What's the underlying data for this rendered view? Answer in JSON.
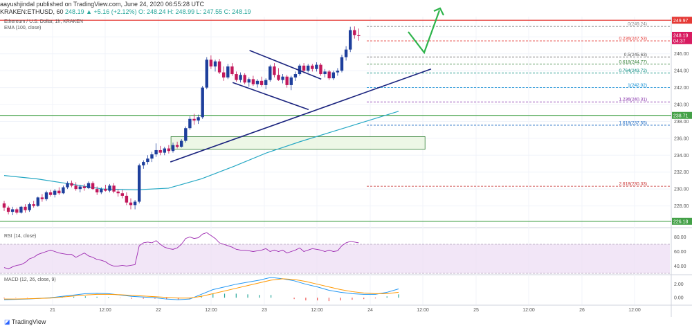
{
  "header": {
    "line1": "aayushjindal published on TradingView.com, June 24, 2020 06:55:28 UTC",
    "symbol": "KRAKEN:ETHUSD, 60",
    "ohlc": "248.19  ▲  +5.16 (+2.12%)  O: 248.24  H: 248.99  L: 247.55  C: 248.19"
  },
  "legend": {
    "pair": "Ethereum / U.S. Dollar, 1h, KRAKEN",
    "ema": "EMA (100, close)"
  },
  "rsi_label": "RSI (14, close)",
  "macd_label": "MACD (12, 26, close, 9)",
  "footer": {
    "brand": "TradingView"
  },
  "colors": {
    "up": "#1e3f9c",
    "down": "#c2185b",
    "ema": "#26a8c4",
    "trend": "#1a237e",
    "red_line": "#e53935",
    "green_line": "#43a047",
    "arrow": "#2db34a",
    "rsi": "#9c27b0",
    "macd": "#2196f3",
    "signal": "#ff9800"
  },
  "chart_data": {
    "type": "candlestick",
    "symbol": "ETHUSD",
    "timeframe": "1h",
    "x_ticks": [
      "21",
      "12:00",
      "22",
      "12:00",
      "23",
      "12:00",
      "24",
      "12:00",
      "25",
      "12:00",
      "26",
      "12:00"
    ],
    "y_ticks": [
      228.0,
      230.0,
      232.0,
      234.0,
      236.0,
      238.0,
      240.0,
      242.0,
      244.0,
      246.0,
      248.0
    ],
    "ylim": [
      226.0,
      250.4
    ],
    "price_labels": [
      {
        "value": 249.97,
        "text": "249.97",
        "color": "#e53935"
      },
      {
        "value": 248.19,
        "text": "248.19",
        "color": "#d81b60"
      },
      {
        "value": 247.55,
        "text": "04:37",
        "color": "#d81b60"
      },
      {
        "value": 238.71,
        "text": "238.71",
        "color": "#43a047"
      },
      {
        "value": 226.18,
        "text": "226.18",
        "color": "#43a047"
      }
    ],
    "fib_levels": [
      {
        "value": 249.24,
        "label": "0(249.24)",
        "color": "#888888"
      },
      {
        "value": 247.53,
        "label": "0.236(247.53)",
        "color": "#e53935"
      },
      {
        "value": 245.63,
        "label": "0.5(245.63)",
        "color": "#555555"
      },
      {
        "value": 244.77,
        "label": "0.618(244.77)",
        "color": "#2e7d32"
      },
      {
        "value": 243.72,
        "label": "0.764(243.72)",
        "color": "#00897b"
      },
      {
        "value": 242.02,
        "label": "1(242.02)",
        "color": "#0288d1"
      },
      {
        "value": 240.31,
        "label": "1.236(240.31)",
        "color": "#7b1fa2"
      },
      {
        "value": 237.55,
        "label": "1.618(237.55)",
        "color": "#1565c0"
      },
      {
        "value": 230.33,
        "label": "2.618(230.33)",
        "color": "#c62828"
      }
    ],
    "horizontal_lines": [
      249.97,
      238.71,
      226.18
    ],
    "candles": [
      [
        228.3,
        228.6,
        227.4,
        227.8
      ],
      [
        227.8,
        228.0,
        227.0,
        227.3
      ],
      [
        227.3,
        227.9,
        226.9,
        227.6
      ],
      [
        227.6,
        227.8,
        227.0,
        227.2
      ],
      [
        227.2,
        228.0,
        227.1,
        227.9
      ],
      [
        227.9,
        228.2,
        227.2,
        227.5
      ],
      [
        227.5,
        228.4,
        227.3,
        228.2
      ],
      [
        228.2,
        228.6,
        227.8,
        228.0
      ],
      [
        228.0,
        229.1,
        227.9,
        229.0
      ],
      [
        229.0,
        229.4,
        228.5,
        228.8
      ],
      [
        228.8,
        229.8,
        228.6,
        229.6
      ],
      [
        229.6,
        229.9,
        229.1,
        229.3
      ],
      [
        229.3,
        230.0,
        229.0,
        229.8
      ],
      [
        229.8,
        230.2,
        229.3,
        229.5
      ],
      [
        229.5,
        230.4,
        229.4,
        230.2
      ],
      [
        230.2,
        230.9,
        230.0,
        230.7
      ],
      [
        230.7,
        231.0,
        230.2,
        230.4
      ],
      [
        230.4,
        230.8,
        229.8,
        230.0
      ],
      [
        230.0,
        230.5,
        229.6,
        230.3
      ],
      [
        230.3,
        230.6,
        229.8,
        230.1
      ],
      [
        230.1,
        230.9,
        230.0,
        230.7
      ],
      [
        230.7,
        230.9,
        229.9,
        230.0
      ],
      [
        230.0,
        230.3,
        229.3,
        229.6
      ],
      [
        229.6,
        230.2,
        229.4,
        230.0
      ],
      [
        230.0,
        230.5,
        229.7,
        229.8
      ],
      [
        229.8,
        230.6,
        229.6,
        230.4
      ],
      [
        230.4,
        230.7,
        229.5,
        229.7
      ],
      [
        229.7,
        230.0,
        229.1,
        229.5
      ],
      [
        229.5,
        229.9,
        228.9,
        229.2
      ],
      [
        229.2,
        229.6,
        228.1,
        228.4
      ],
      [
        228.4,
        228.9,
        227.6,
        228.1
      ],
      [
        228.1,
        228.7,
        227.6,
        228.5
      ],
      [
        228.5,
        233.0,
        228.3,
        232.8
      ],
      [
        232.8,
        233.4,
        232.4,
        233.2
      ],
      [
        233.2,
        234.0,
        232.9,
        233.6
      ],
      [
        233.6,
        234.4,
        233.2,
        234.1
      ],
      [
        234.1,
        235.4,
        233.8,
        234.6
      ],
      [
        234.6,
        235.1,
        234.0,
        234.3
      ],
      [
        234.3,
        235.0,
        234.0,
        234.8
      ],
      [
        234.8,
        235.2,
        234.2,
        234.5
      ],
      [
        234.5,
        235.5,
        234.3,
        235.2
      ],
      [
        235.2,
        235.6,
        234.8,
        235.0
      ],
      [
        235.0,
        235.9,
        234.9,
        235.7
      ],
      [
        235.7,
        237.4,
        235.5,
        237.2
      ],
      [
        237.2,
        238.6,
        237.0,
        238.3
      ],
      [
        238.3,
        238.9,
        237.6,
        238.1
      ],
      [
        238.1,
        238.8,
        237.7,
        238.5
      ],
      [
        238.5,
        242.2,
        238.3,
        242.0
      ],
      [
        242.0,
        245.6,
        241.8,
        245.3
      ],
      [
        245.3,
        245.8,
        244.2,
        244.5
      ],
      [
        244.5,
        245.3,
        243.9,
        245.1
      ],
      [
        245.1,
        245.4,
        243.6,
        243.8
      ],
      [
        243.8,
        244.5,
        242.8,
        243.2
      ],
      [
        243.2,
        244.8,
        243.0,
        244.5
      ],
      [
        244.5,
        244.9,
        243.4,
        243.6
      ],
      [
        243.6,
        243.9,
        242.7,
        242.9
      ],
      [
        242.9,
        243.8,
        242.6,
        243.5
      ],
      [
        243.5,
        243.7,
        242.4,
        242.6
      ],
      [
        242.6,
        243.2,
        242.1,
        243.0
      ],
      [
        243.0,
        243.4,
        242.2,
        242.4
      ],
      [
        242.4,
        243.0,
        242.0,
        242.8
      ],
      [
        242.8,
        243.3,
        242.1,
        242.3
      ],
      [
        242.3,
        243.1,
        241.8,
        242.9
      ],
      [
        242.9,
        244.7,
        242.7,
        244.5
      ],
      [
        244.5,
        244.9,
        243.2,
        243.5
      ],
      [
        243.5,
        244.3,
        242.8,
        242.9
      ],
      [
        242.9,
        243.6,
        242.5,
        243.3
      ],
      [
        243.3,
        243.5,
        242.0,
        242.3
      ],
      [
        242.3,
        243.4,
        241.7,
        243.2
      ],
      [
        243.2,
        243.9,
        242.8,
        243.6
      ],
      [
        243.6,
        244.8,
        243.4,
        244.6
      ],
      [
        244.6,
        244.9,
        243.7,
        244.0
      ],
      [
        244.0,
        244.8,
        243.8,
        244.6
      ],
      [
        244.6,
        244.8,
        243.9,
        244.2
      ],
      [
        244.2,
        245.0,
        243.9,
        244.7
      ],
      [
        244.7,
        244.9,
        243.4,
        243.6
      ],
      [
        243.6,
        244.2,
        243.2,
        243.9
      ],
      [
        243.9,
        244.1,
        242.9,
        243.1
      ],
      [
        243.1,
        244.0,
        242.9,
        243.8
      ],
      [
        243.8,
        244.3,
        243.4,
        244.0
      ],
      [
        244.0,
        245.9,
        243.8,
        245.6
      ],
      [
        245.6,
        246.9,
        245.2,
        246.5
      ],
      [
        246.5,
        249.2,
        246.2,
        248.8
      ],
      [
        248.8,
        249.24,
        247.8,
        248.2
      ],
      [
        248.2,
        248.99,
        247.55,
        248.19
      ]
    ],
    "ema100": [
      231.6,
      231.2,
      230.6,
      230.0,
      229.9,
      230.1,
      231.2,
      232.7,
      234.3,
      235.6,
      236.8,
      238.0,
      239.2
    ],
    "annotations": [
      {
        "type": "trendline",
        "from": [
          32,
          233.2
        ],
        "to": [
          79,
          244.2
        ]
      },
      {
        "type": "flag_top",
        "from": [
          46,
          246.4
        ],
        "to": [
          62,
          243.0
        ]
      },
      {
        "type": "flag_bottom",
        "from": [
          42,
          242.6
        ],
        "to": [
          59,
          239.4
        ]
      },
      {
        "type": "support_zone",
        "x_from": 31,
        "x_to": 72,
        "y_from": 234.7,
        "y_to": 236.2
      },
      {
        "type": "projection",
        "points": [
          [
            83,
            247.7
          ],
          [
            88,
            245.6
          ],
          [
            94,
            257.2
          ]
        ]
      }
    ],
    "rsi": {
      "y_ticks": [
        40.0,
        60.0,
        80.0
      ],
      "ylim": [
        30,
        90
      ],
      "band": [
        30,
        70
      ],
      "values": [
        38,
        36,
        39,
        41,
        42,
        45,
        50,
        52,
        56,
        58,
        60,
        62,
        60,
        58,
        57,
        56,
        56,
        52,
        55,
        58,
        54,
        52,
        49,
        48,
        46,
        42,
        40,
        40,
        41,
        40,
        41,
        42,
        68,
        72,
        73,
        72,
        75,
        70,
        66,
        64,
        63,
        65,
        70,
        78,
        80,
        78,
        79,
        84,
        86,
        82,
        78,
        72,
        70,
        68,
        66,
        63,
        62,
        62,
        61,
        60,
        61,
        62,
        64,
        60,
        62,
        60,
        62,
        58,
        60,
        62,
        65,
        60,
        62,
        64,
        63,
        62,
        60,
        62,
        60,
        61,
        68,
        72,
        74,
        73,
        72
      ]
    },
    "macd": {
      "y_ticks": [
        0.0,
        2.0
      ],
      "ylim": [
        -1.0,
        3.3
      ],
      "macd": [
        -0.3,
        -0.25,
        -0.2,
        -0.1,
        0.0,
        0.2,
        0.4,
        0.6,
        0.65,
        0.6,
        0.4,
        0.2,
        0.1,
        0.0,
        -0.2,
        -0.3,
        -0.2,
        0.5,
        1.2,
        1.6,
        2.0,
        2.3,
        2.6,
        3.0,
        2.8,
        2.5,
        2.0,
        1.6,
        1.1,
        0.8,
        0.6,
        0.5,
        0.5,
        0.8,
        1.3
      ],
      "signal": [
        -0.2,
        -0.2,
        -0.15,
        -0.1,
        -0.05,
        0.1,
        0.25,
        0.4,
        0.5,
        0.5,
        0.45,
        0.35,
        0.25,
        0.15,
        0.05,
        -0.05,
        -0.05,
        0.2,
        0.6,
        1.0,
        1.4,
        1.8,
        2.2,
        2.6,
        2.8,
        2.7,
        2.4,
        2.0,
        1.6,
        1.2,
        0.9,
        0.7,
        0.6,
        0.6,
        0.8
      ]
    }
  }
}
